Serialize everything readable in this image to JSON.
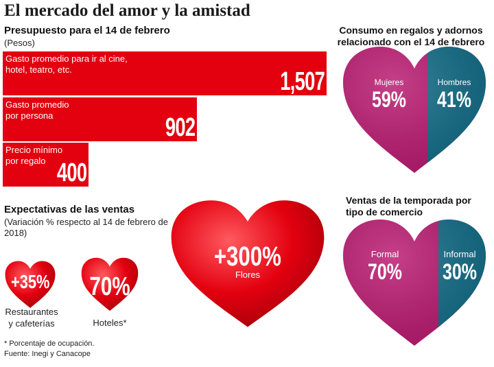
{
  "title": "El mercado del amor y la amistad",
  "presupuesto": {
    "heading": "Presupuesto para el 14 de febrero",
    "unit": "(Pesos)"
  },
  "consumo": {
    "heading_line1": "Consumo en regalos y adornos",
    "heading_line2": "relacionado con el 14 de febrero",
    "left_label": "Mujeres",
    "left_value": "59%",
    "right_label": "Hombres",
    "right_value": "41%"
  },
  "ventas_tipo": {
    "heading_line1": "Ventas  de la temporada por",
    "heading_line2": "tipo de comercio",
    "left_label": "Formal",
    "left_value": "70%",
    "right_label": "Informal",
    "right_value": "30%"
  },
  "expectativas": {
    "heading": "Expectativas de las ventas",
    "sub_line1": "(Variación % respecto al 14 de febrero de",
    "sub_line2": "2018)",
    "restaurantes_value": "+35%",
    "restaurantes_label1": "Restaurantes",
    "restaurantes_label2": "y cafeterías",
    "hoteles_value": "70%",
    "hoteles_label": "Hoteles*",
    "flores_value": "+300%",
    "flores_label": "Flores"
  },
  "footnote": {
    "line1": "* Porcentaje de ocupación.",
    "line2": "Fuente: Inegi y Canacope"
  },
  "colors": {
    "red": "#e3000f",
    "magenta": "#b8176e",
    "teal": "#0f6a85"
  },
  "chart_data": [
    {
      "type": "bar",
      "title": "Presupuesto para el 14 de febrero",
      "ylabel": "(Pesos)",
      "categories": [
        "Gasto promedio para ir al cine, hotel, teatro, etc.",
        "Gasto promedio por persona",
        "Precio mínimo por regalo"
      ],
      "category_lines": [
        [
          "Gasto promedio para ir al cine,",
          "hotel, teatro, etc."
        ],
        [
          "Gasto promedio",
          "por persona"
        ],
        [
          "Precio mínimo",
          "por regalo"
        ]
      ],
      "values": [
        1507,
        902,
        400
      ],
      "value_labels": [
        "1,507",
        "902",
        "400"
      ],
      "xlim": [
        0,
        1507
      ]
    },
    {
      "type": "pie",
      "title": "Consumo en regalos y adornos relacionado con el 14 de febrero",
      "categories": [
        "Mujeres",
        "Hombres"
      ],
      "values": [
        59,
        41
      ]
    },
    {
      "type": "pie",
      "title": "Ventas de la temporada por tipo de comercio",
      "categories": [
        "Formal",
        "Informal"
      ],
      "values": [
        70,
        30
      ]
    },
    {
      "type": "bar",
      "title": "Expectativas de las ventas",
      "categories": [
        "Restaurantes y cafeterías",
        "Hoteles*",
        "Flores"
      ],
      "values": [
        35,
        70,
        300
      ]
    }
  ]
}
